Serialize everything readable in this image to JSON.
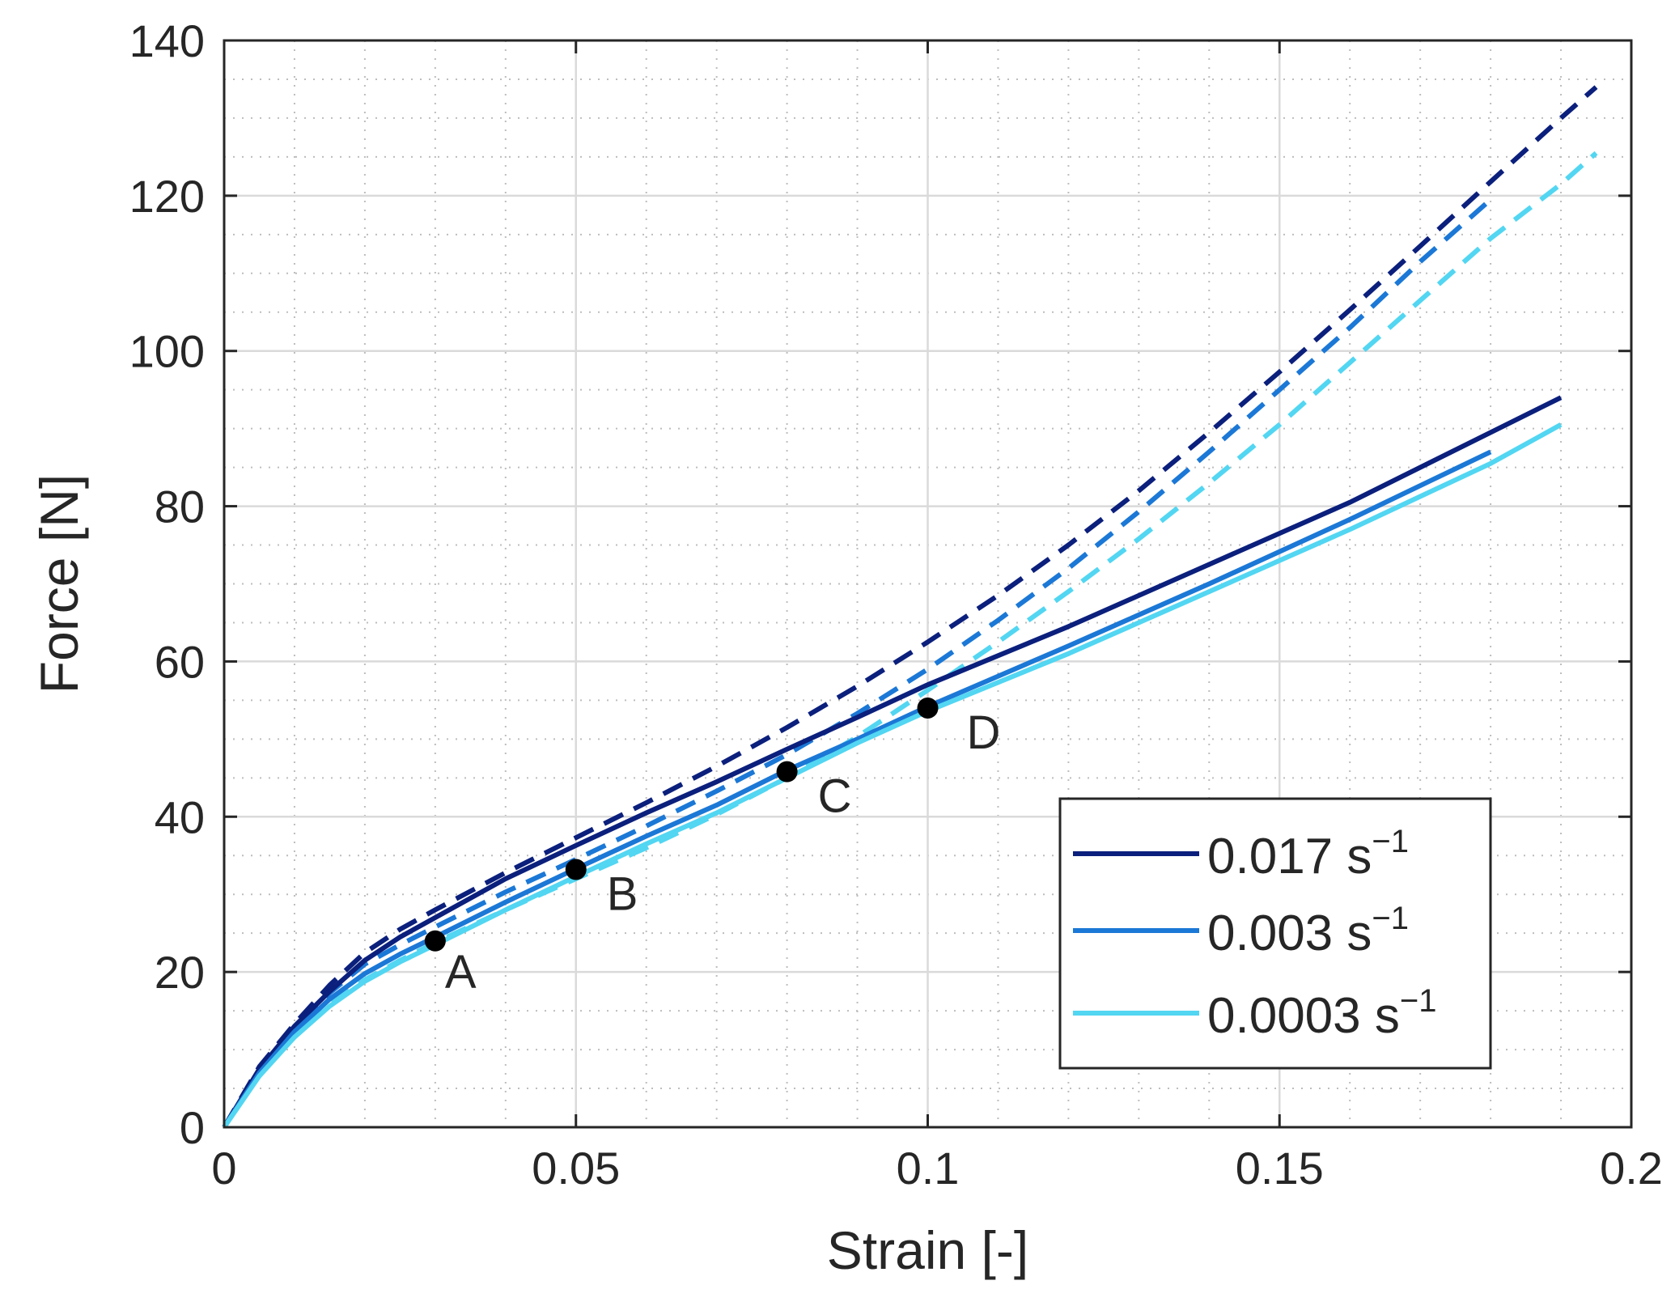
{
  "chart_data": {
    "type": "line",
    "title": "",
    "xlabel": "Strain [-]",
    "ylabel": "Force [N]",
    "xlim": [
      0,
      0.2
    ],
    "ylim": [
      0,
      140
    ],
    "xticks": [
      0,
      0.05,
      0.1,
      0.15,
      0.2
    ],
    "xtick_labels": [
      "0",
      "0.05",
      "0.1",
      "0.15",
      "0.2"
    ],
    "yticks": [
      0,
      20,
      40,
      60,
      80,
      100,
      120,
      140
    ],
    "ytick_labels": [
      "0",
      "20",
      "40",
      "60",
      "80",
      "100",
      "120",
      "140"
    ],
    "grid": true,
    "minor_grid": true,
    "legend_position": "bottom-right",
    "series": [
      {
        "name": "0.017 s",
        "unit_exponent": "−1",
        "color": "#0b1f7c",
        "style": "solid",
        "x": [
          0,
          0.005,
          0.01,
          0.015,
          0.02,
          0.025,
          0.03,
          0.04,
          0.05,
          0.06,
          0.07,
          0.08,
          0.09,
          0.1,
          0.12,
          0.14,
          0.16,
          0.18,
          0.19
        ],
        "y": [
          0,
          7.5,
          13,
          17.5,
          21.5,
          24.5,
          27,
          32,
          36.3,
          40.5,
          44.5,
          48.7,
          52.8,
          57,
          64.5,
          72.5,
          80.5,
          89.5,
          94
        ]
      },
      {
        "name": "0.003 s",
        "unit_exponent": "−1",
        "color": "#1b78d6",
        "style": "solid",
        "x": [
          0,
          0.005,
          0.01,
          0.015,
          0.02,
          0.025,
          0.03,
          0.04,
          0.05,
          0.06,
          0.07,
          0.08,
          0.09,
          0.1,
          0.12,
          0.14,
          0.16,
          0.18
        ],
        "y": [
          0,
          7,
          12.3,
          16.5,
          19.8,
          22.3,
          24.5,
          29,
          33.3,
          37.5,
          41.5,
          46,
          50,
          54.2,
          62,
          70,
          78.3,
          87
        ]
      },
      {
        "name": "0.0003 s",
        "unit_exponent": "−1",
        "color": "#52d6f2",
        "style": "solid",
        "x": [
          0,
          0.005,
          0.01,
          0.015,
          0.02,
          0.025,
          0.03,
          0.04,
          0.05,
          0.06,
          0.07,
          0.08,
          0.09,
          0.1,
          0.12,
          0.14,
          0.16,
          0.18,
          0.19
        ],
        "y": [
          0,
          6.6,
          11.6,
          15.6,
          18.8,
          21.3,
          23.5,
          28,
          32.3,
          36.5,
          40.5,
          45,
          49.5,
          53.6,
          61,
          69,
          77,
          85.5,
          90.5
        ]
      },
      {
        "name": "0.017 s⁻¹ (dashed)",
        "legend": false,
        "color": "#0b1f7c",
        "style": "dashed",
        "x": [
          0,
          0.005,
          0.01,
          0.015,
          0.02,
          0.025,
          0.03,
          0.04,
          0.05,
          0.06,
          0.07,
          0.08,
          0.09,
          0.1,
          0.11,
          0.12,
          0.13,
          0.14,
          0.15,
          0.16,
          0.17,
          0.18,
          0.19,
          0.195
        ],
        "y": [
          0,
          7.8,
          13.3,
          18.3,
          22.5,
          25.5,
          28,
          32.8,
          37.3,
          41.8,
          46.5,
          51.5,
          56.8,
          62.5,
          68.5,
          75,
          82,
          89.5,
          97.3,
          105.3,
          113.5,
          121.8,
          130,
          134
        ]
      },
      {
        "name": "0.003 s⁻¹ (dashed)",
        "legend": false,
        "color": "#1b78d6",
        "style": "dashed",
        "x": [
          0,
          0.005,
          0.01,
          0.015,
          0.02,
          0.025,
          0.03,
          0.04,
          0.05,
          0.06,
          0.07,
          0.08,
          0.09,
          0.1,
          0.11,
          0.12,
          0.13,
          0.14,
          0.15,
          0.16,
          0.17,
          0.18
        ],
        "y": [
          0,
          7.3,
          12.8,
          17.3,
          21,
          23.5,
          25.8,
          30.3,
          34.5,
          38.8,
          43.3,
          48,
          53.3,
          59,
          65.3,
          72,
          79.3,
          87,
          95,
          103,
          111.5,
          119.5
        ]
      },
      {
        "name": "0.0003 s⁻¹ (dashed)",
        "legend": false,
        "color": "#52d6f2",
        "style": "dashed",
        "x": [
          0,
          0.005,
          0.01,
          0.015,
          0.02,
          0.025,
          0.03,
          0.04,
          0.05,
          0.06,
          0.07,
          0.08,
          0.09,
          0.1,
          0.11,
          0.12,
          0.13,
          0.14,
          0.15,
          0.16,
          0.17,
          0.18,
          0.19,
          0.195
        ],
        "y": [
          0,
          6.8,
          11.8,
          15.8,
          19,
          21.5,
          23.8,
          28,
          32,
          36,
          40.3,
          45,
          50.3,
          56.3,
          62.5,
          69,
          75.8,
          83,
          90.5,
          98.5,
          106.5,
          114.5,
          121.5,
          125.5
        ]
      }
    ],
    "points": [
      {
        "label": "A",
        "x": 0.03,
        "y": 24
      },
      {
        "label": "B",
        "x": 0.05,
        "y": 33.2
      },
      {
        "label": "C",
        "x": 0.08,
        "y": 45.8
      },
      {
        "label": "D",
        "x": 0.1,
        "y": 54
      }
    ]
  }
}
